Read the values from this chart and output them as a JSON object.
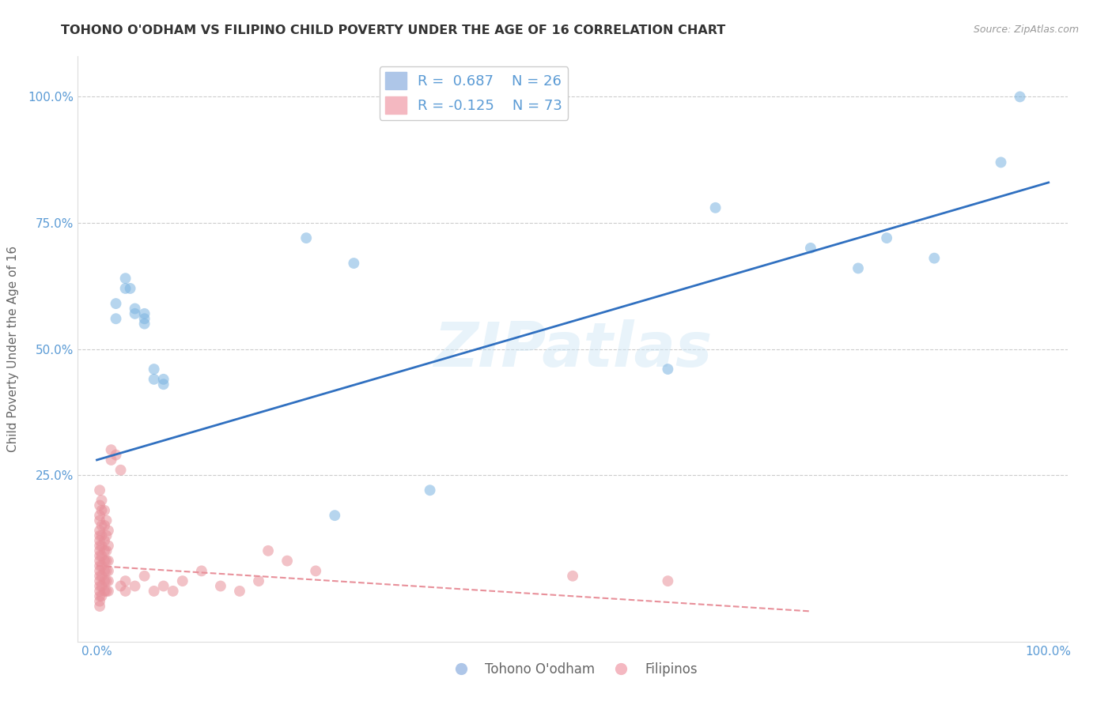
{
  "title": "TOHONO O'ODHAM VS FILIPINO CHILD POVERTY UNDER THE AGE OF 16 CORRELATION CHART",
  "source": "Source: ZipAtlas.com",
  "ylabel": "Child Poverty Under the Age of 16",
  "xlim": [
    -0.02,
    1.02
  ],
  "ylim": [
    -0.08,
    1.08
  ],
  "xticks": [
    0.0,
    0.25,
    0.5,
    0.75,
    1.0
  ],
  "yticks": [
    0.0,
    0.25,
    0.5,
    0.75,
    1.0
  ],
  "xticklabels": [
    "0.0%",
    "",
    "",
    "",
    "100.0%"
  ],
  "yticklabels": [
    "",
    "25.0%",
    "50.0%",
    "75.0%",
    "100.0%"
  ],
  "tohono_points": [
    [
      0.02,
      0.59
    ],
    [
      0.02,
      0.56
    ],
    [
      0.03,
      0.64
    ],
    [
      0.03,
      0.62
    ],
    [
      0.035,
      0.62
    ],
    [
      0.04,
      0.57
    ],
    [
      0.04,
      0.58
    ],
    [
      0.05,
      0.57
    ],
    [
      0.05,
      0.56
    ],
    [
      0.05,
      0.55
    ],
    [
      0.06,
      0.44
    ],
    [
      0.06,
      0.46
    ],
    [
      0.07,
      0.44
    ],
    [
      0.07,
      0.43
    ],
    [
      0.22,
      0.72
    ],
    [
      0.25,
      0.17
    ],
    [
      0.27,
      0.67
    ],
    [
      0.35,
      0.22
    ],
    [
      0.6,
      0.46
    ],
    [
      0.65,
      0.78
    ],
    [
      0.75,
      0.7
    ],
    [
      0.8,
      0.66
    ],
    [
      0.83,
      0.72
    ],
    [
      0.88,
      0.68
    ],
    [
      0.95,
      0.87
    ],
    [
      0.97,
      1.0
    ]
  ],
  "filipino_points": [
    [
      0.003,
      0.22
    ],
    [
      0.003,
      0.19
    ],
    [
      0.003,
      0.17
    ],
    [
      0.003,
      0.16
    ],
    [
      0.003,
      0.14
    ],
    [
      0.003,
      0.13
    ],
    [
      0.003,
      0.12
    ],
    [
      0.003,
      0.11
    ],
    [
      0.003,
      0.1
    ],
    [
      0.003,
      0.09
    ],
    [
      0.003,
      0.08
    ],
    [
      0.003,
      0.07
    ],
    [
      0.003,
      0.06
    ],
    [
      0.003,
      0.05
    ],
    [
      0.003,
      0.04
    ],
    [
      0.003,
      0.03
    ],
    [
      0.003,
      0.02
    ],
    [
      0.003,
      0.01
    ],
    [
      0.003,
      0.0
    ],
    [
      0.003,
      -0.01
    ],
    [
      0.005,
      0.2
    ],
    [
      0.005,
      0.18
    ],
    [
      0.005,
      0.15
    ],
    [
      0.005,
      0.13
    ],
    [
      0.005,
      0.11
    ],
    [
      0.005,
      0.09
    ],
    [
      0.005,
      0.07
    ],
    [
      0.005,
      0.05
    ],
    [
      0.005,
      0.03
    ],
    [
      0.005,
      0.01
    ],
    [
      0.008,
      0.18
    ],
    [
      0.008,
      0.15
    ],
    [
      0.008,
      0.12
    ],
    [
      0.008,
      0.1
    ],
    [
      0.008,
      0.08
    ],
    [
      0.008,
      0.06
    ],
    [
      0.008,
      0.04
    ],
    [
      0.008,
      0.02
    ],
    [
      0.01,
      0.16
    ],
    [
      0.01,
      0.13
    ],
    [
      0.01,
      0.1
    ],
    [
      0.01,
      0.08
    ],
    [
      0.01,
      0.06
    ],
    [
      0.01,
      0.04
    ],
    [
      0.01,
      0.02
    ],
    [
      0.012,
      0.14
    ],
    [
      0.012,
      0.11
    ],
    [
      0.012,
      0.08
    ],
    [
      0.012,
      0.06
    ],
    [
      0.012,
      0.04
    ],
    [
      0.012,
      0.02
    ],
    [
      0.015,
      0.3
    ],
    [
      0.015,
      0.28
    ],
    [
      0.02,
      0.29
    ],
    [
      0.025,
      0.26
    ],
    [
      0.025,
      0.03
    ],
    [
      0.03,
      0.02
    ],
    [
      0.03,
      0.04
    ],
    [
      0.04,
      0.03
    ],
    [
      0.05,
      0.05
    ],
    [
      0.06,
      0.02
    ],
    [
      0.07,
      0.03
    ],
    [
      0.08,
      0.02
    ],
    [
      0.09,
      0.04
    ],
    [
      0.11,
      0.06
    ],
    [
      0.13,
      0.03
    ],
    [
      0.15,
      0.02
    ],
    [
      0.17,
      0.04
    ],
    [
      0.18,
      0.1
    ],
    [
      0.2,
      0.08
    ],
    [
      0.23,
      0.06
    ],
    [
      0.5,
      0.05
    ],
    [
      0.6,
      0.04
    ]
  ],
  "tohono_line": {
    "x0": 0.0,
    "y0": 0.28,
    "x1": 1.0,
    "y1": 0.83
  },
  "filipino_line": {
    "x0": 0.0,
    "y0": 0.07,
    "x1": 0.75,
    "y1": -0.02
  },
  "tohono_color": "#7ab3e0",
  "filipino_color": "#e8909a",
  "tohono_line_color": "#3070c0",
  "filipino_line_color": "#e8909a",
  "watermark": "ZIPatlas",
  "bg_color": "#ffffff",
  "grid_color": "#cccccc",
  "title_color": "#333333",
  "axis_label_color": "#5b9bd5",
  "scatter_alpha": 0.55,
  "scatter_size": 100
}
